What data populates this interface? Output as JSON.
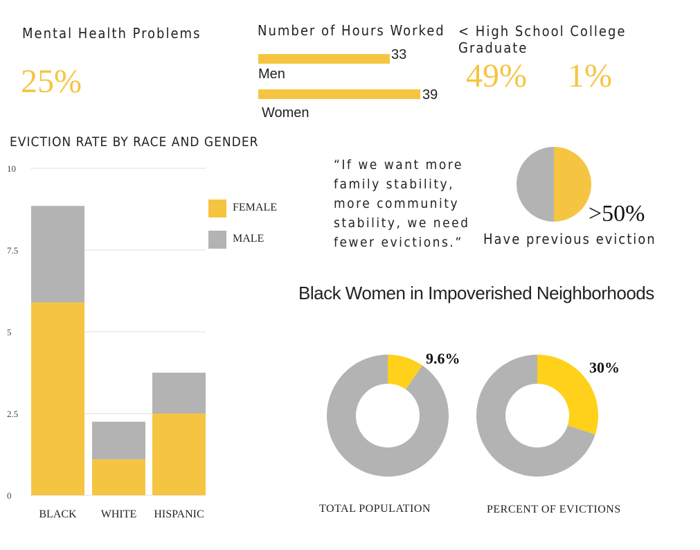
{
  "mental_health": {
    "title": "Mental Health Problems",
    "value": "25%"
  },
  "hours_worked": {
    "title": "Number of Hours Worked",
    "men_label": "Men",
    "men_value": "33",
    "women_label": "Women",
    "women_value": "39"
  },
  "education": {
    "title": "< High School College Graduate",
    "hs_value": "49%",
    "college_value": "1%"
  },
  "quote": {
    "line1": "“If we want more",
    "line2": "family stability,",
    "line3": "more community",
    "line4": "stability, we need",
    "line5": "fewer evictions.”"
  },
  "prior_eviction": {
    "value": ">50%",
    "label": "Have previous eviction"
  },
  "donuts_title": "Black Women in Impoverished Neighborhoods",
  "colors": {
    "yellow": "#f5c542",
    "gray": "#b3b3b3",
    "donut_yellow": "#ffd11a"
  },
  "chart_data": [
    {
      "type": "bar",
      "title": "EVICTION RATE BY RACE AND GENDER",
      "stacked": true,
      "categories": [
        "BLACK",
        "WHITE",
        "HISPANIC"
      ],
      "series": [
        {
          "name": "FEMALE",
          "values": [
            5.9,
            1.1,
            2.5
          ],
          "color": "#f5c542"
        },
        {
          "name": "MALE",
          "values": [
            2.95,
            1.15,
            1.25
          ],
          "color": "#b3b3b3"
        }
      ],
      "yticks": [
        "0",
        "2.5",
        "5",
        "7.5",
        "10"
      ],
      "ylim": [
        0,
        10
      ],
      "grid": true,
      "legend": "right"
    },
    {
      "type": "pie",
      "title": "",
      "label": "TOTAL POPULATION",
      "slices": [
        {
          "value": 9.6,
          "label": "9.6%"
        },
        {
          "value": 90.4,
          "label": ""
        }
      ]
    },
    {
      "type": "pie",
      "title": "",
      "label": "PERCENT OF EVICTIONS",
      "slices": [
        {
          "value": 30,
          "label": "30%"
        },
        {
          "value": 70,
          "label": ""
        }
      ]
    }
  ]
}
